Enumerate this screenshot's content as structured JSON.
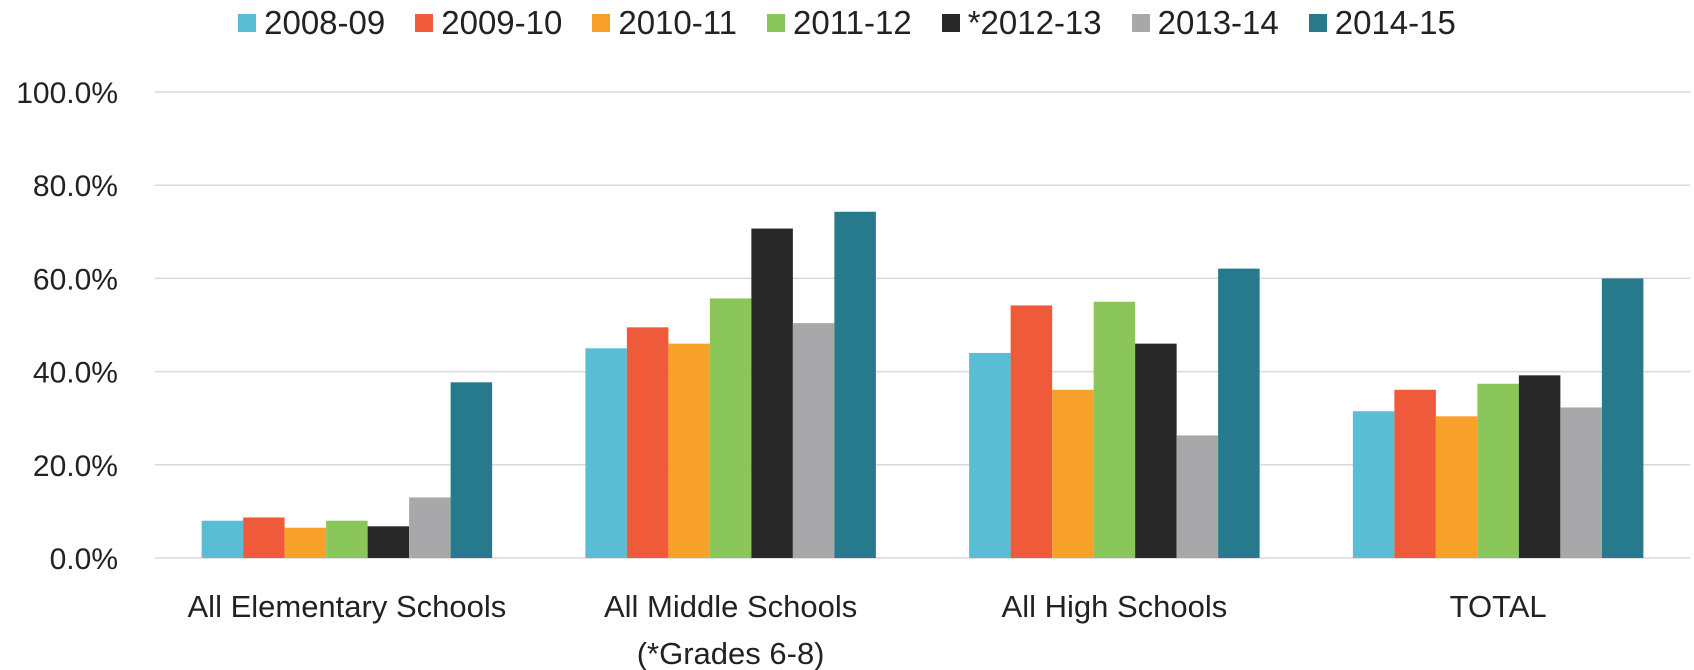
{
  "chart_data": {
    "type": "bar",
    "categories": [
      "All Elementary Schools",
      "All Middle Schools (*Grades 6-8)",
      "All High Schools",
      "TOTAL"
    ],
    "category_lines": [
      [
        "All Elementary Schools"
      ],
      [
        "All Middle Schools",
        "(*Grades 6-8)"
      ],
      [
        "All High Schools"
      ],
      [
        "TOTAL"
      ]
    ],
    "series": [
      {
        "name": "2008-09",
        "color": "#5bbdd3",
        "values": [
          8.0,
          45.0,
          44.0,
          31.5
        ]
      },
      {
        "name": "2009-10",
        "color": "#ef5b3a",
        "values": [
          8.7,
          49.5,
          54.2,
          36.1
        ]
      },
      {
        "name": "2010-11",
        "color": "#f7a12a",
        "values": [
          6.5,
          46.0,
          36.1,
          30.4
        ]
      },
      {
        "name": "2011-12",
        "color": "#8bc65b",
        "values": [
          8.0,
          55.7,
          55.0,
          37.4
        ]
      },
      {
        "name": "*2012-13",
        "color": "#282828",
        "values": [
          6.8,
          70.7,
          46.0,
          39.2
        ]
      },
      {
        "name": "2013-14",
        "color": "#a8a8aa",
        "values": [
          13.0,
          50.4,
          26.3,
          32.3
        ]
      },
      {
        "name": "2014-15",
        "color": "#267a8b",
        "values": [
          37.7,
          74.3,
          62.1,
          60.0
        ]
      }
    ],
    "y_ticks": [
      "0.0%",
      "20.0%",
      "40.0%",
      "60.0%",
      "80.0%",
      "100.0%"
    ],
    "ylim": [
      0,
      100
    ],
    "grid": true,
    "legend_position": "top"
  }
}
